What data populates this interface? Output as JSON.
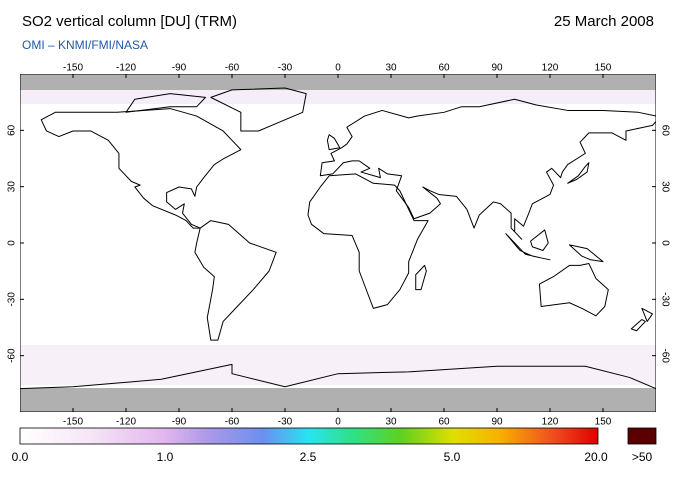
{
  "header": {
    "title": "SO2 vertical column [DU] (TRM)",
    "date": "25 March 2008",
    "source": "OMI  –  KNMI/FMI/NASA"
  },
  "map": {
    "lon_ticks": [
      -150,
      -120,
      -90,
      -60,
      -30,
      0,
      30,
      60,
      90,
      120,
      150
    ],
    "lat_ticks": [
      60,
      30,
      0,
      -30,
      -60
    ]
  },
  "colorbar": {
    "labels": [
      "0.0",
      "1.0",
      "2.5",
      "5.0",
      "20.0"
    ],
    "overflow_label": ">50"
  }
}
